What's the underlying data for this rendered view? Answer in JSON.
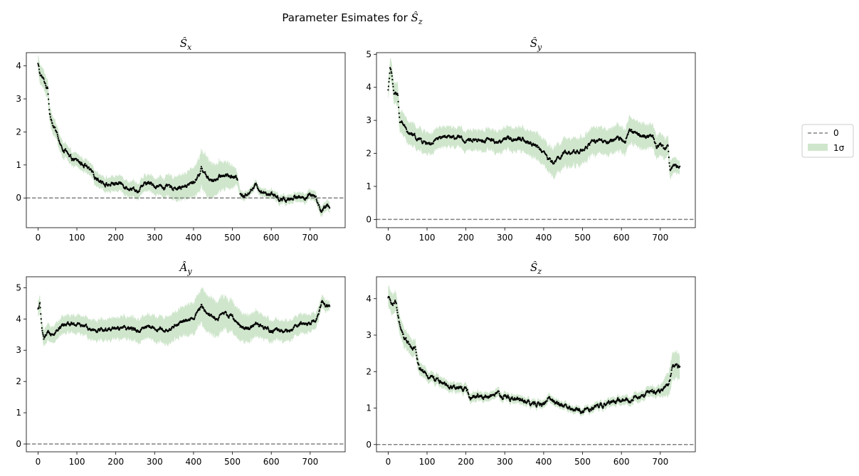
{
  "figure": {
    "title": "Parameter Esimates for Ŝz",
    "title_main": "Parameter Esimates for ",
    "title_symbol": "Ŝ",
    "title_sub": "z"
  },
  "legend": {
    "entries": [
      {
        "label": "0",
        "style": "dashed-line",
        "color": "#808080"
      },
      {
        "label": "1σ",
        "style": "patch",
        "color": "#cfe6cc"
      }
    ],
    "placement": "right-center"
  },
  "colors": {
    "points": "#000000",
    "band": "#cfe6cc",
    "zero_line": "#808080"
  },
  "chart_data": [
    {
      "type": "scatter",
      "title": "Ŝx",
      "title_symbol": "Ŝ",
      "title_sub": "x",
      "xlim": [
        -30,
        790
      ],
      "ylim": [
        -0.9,
        4.4
      ],
      "xticks": [
        0,
        100,
        200,
        300,
        400,
        500,
        600,
        700
      ],
      "yticks": [
        0,
        1,
        2,
        3,
        4
      ],
      "x_end": 750,
      "zero_line": 0,
      "gaps": [
        [
          513,
          520
        ]
      ],
      "mean_keypoints": [
        [
          0,
          4.05
        ],
        [
          5,
          3.75
        ],
        [
          15,
          3.55
        ],
        [
          25,
          3.3
        ],
        [
          30,
          2.6
        ],
        [
          40,
          2.2
        ],
        [
          50,
          1.9
        ],
        [
          60,
          1.5
        ],
        [
          70,
          1.45
        ],
        [
          80,
          1.2
        ],
        [
          100,
          1.1
        ],
        [
          120,
          1.0
        ],
        [
          140,
          0.7
        ],
        [
          160,
          0.55
        ],
        [
          180,
          0.4
        ],
        [
          200,
          0.45
        ],
        [
          220,
          0.4
        ],
        [
          240,
          0.32
        ],
        [
          260,
          0.22
        ],
        [
          280,
          0.45
        ],
        [
          300,
          0.38
        ],
        [
          320,
          0.35
        ],
        [
          340,
          0.3
        ],
        [
          360,
          0.35
        ],
        [
          380,
          0.35
        ],
        [
          400,
          0.45
        ],
        [
          415,
          0.75
        ],
        [
          420,
          0.88
        ],
        [
          440,
          0.6
        ],
        [
          460,
          0.55
        ],
        [
          480,
          0.7
        ],
        [
          500,
          0.65
        ],
        [
          513,
          0.55
        ],
        [
          520,
          0.2
        ],
        [
          530,
          0.05
        ],
        [
          545,
          0.25
        ],
        [
          560,
          0.35
        ],
        [
          580,
          0.2
        ],
        [
          600,
          0.15
        ],
        [
          620,
          0.0
        ],
        [
          640,
          -0.05
        ],
        [
          660,
          0.05
        ],
        [
          680,
          0.0
        ],
        [
          700,
          0.1
        ],
        [
          710,
          0.15
        ],
        [
          720,
          -0.15
        ],
        [
          730,
          -0.4
        ],
        [
          740,
          -0.3
        ],
        [
          750,
          -0.25
        ]
      ],
      "band_halfwidth_keypoints": [
        [
          0,
          0.3
        ],
        [
          100,
          0.2
        ],
        [
          300,
          0.25
        ],
        [
          400,
          0.45
        ],
        [
          430,
          0.6
        ],
        [
          500,
          0.35
        ],
        [
          520,
          0.12
        ],
        [
          700,
          0.15
        ],
        [
          750,
          0.15
        ]
      ]
    },
    {
      "type": "scatter",
      "title": "Ŝy",
      "title_symbol": "Ŝ",
      "title_sub": "y",
      "xlim": [
        -30,
        790
      ],
      "ylim": [
        -0.25,
        5.05
      ],
      "xticks": [
        0,
        100,
        200,
        300,
        400,
        500,
        600,
        700
      ],
      "yticks": [
        0,
        1,
        2,
        3,
        4,
        5
      ],
      "x_end": 750,
      "zero_line": 0,
      "gaps": [],
      "mean_keypoints": [
        [
          0,
          3.9
        ],
        [
          5,
          4.6
        ],
        [
          10,
          4.3
        ],
        [
          15,
          3.8
        ],
        [
          25,
          3.75
        ],
        [
          30,
          3.0
        ],
        [
          40,
          2.9
        ],
        [
          50,
          2.6
        ],
        [
          70,
          2.5
        ],
        [
          90,
          2.35
        ],
        [
          110,
          2.3
        ],
        [
          130,
          2.4
        ],
        [
          150,
          2.5
        ],
        [
          170,
          2.45
        ],
        [
          190,
          2.45
        ],
        [
          200,
          2.3
        ],
        [
          220,
          2.45
        ],
        [
          240,
          2.4
        ],
        [
          260,
          2.45
        ],
        [
          280,
          2.35
        ],
        [
          300,
          2.4
        ],
        [
          320,
          2.45
        ],
        [
          340,
          2.5
        ],
        [
          360,
          2.35
        ],
        [
          380,
          2.25
        ],
        [
          400,
          2.05
        ],
        [
          420,
          1.7
        ],
        [
          430,
          1.75
        ],
        [
          450,
          2.0
        ],
        [
          470,
          1.95
        ],
        [
          490,
          2.05
        ],
        [
          510,
          2.2
        ],
        [
          530,
          2.4
        ],
        [
          550,
          2.35
        ],
        [
          570,
          2.3
        ],
        [
          590,
          2.4
        ],
        [
          610,
          2.45
        ],
        [
          620,
          2.7
        ],
        [
          640,
          2.55
        ],
        [
          660,
          2.5
        ],
        [
          680,
          2.5
        ],
        [
          690,
          2.2
        ],
        [
          700,
          2.3
        ],
        [
          710,
          2.1
        ],
        [
          720,
          2.2
        ],
        [
          725,
          1.5
        ],
        [
          735,
          1.6
        ],
        [
          750,
          1.6
        ]
      ],
      "band_halfwidth_keypoints": [
        [
          0,
          0.3
        ],
        [
          50,
          0.35
        ],
        [
          200,
          0.3
        ],
        [
          300,
          0.35
        ],
        [
          400,
          0.4
        ],
        [
          430,
          0.45
        ],
        [
          550,
          0.4
        ],
        [
          620,
          0.4
        ],
        [
          700,
          0.35
        ],
        [
          750,
          0.2
        ]
      ]
    },
    {
      "type": "scatter",
      "title": "Ây",
      "title_symbol": "Â",
      "title_sub": "y",
      "xlim": [
        -30,
        790
      ],
      "ylim": [
        -0.25,
        5.35
      ],
      "xticks": [
        0,
        100,
        200,
        300,
        400,
        500,
        600,
        700
      ],
      "yticks": [
        0,
        1,
        2,
        3,
        4,
        5
      ],
      "x_end": 750,
      "zero_line": 0,
      "gaps": [],
      "mean_keypoints": [
        [
          0,
          4.3
        ],
        [
          5,
          4.45
        ],
        [
          10,
          3.7
        ],
        [
          15,
          3.3
        ],
        [
          25,
          3.5
        ],
        [
          40,
          3.6
        ],
        [
          60,
          3.8
        ],
        [
          80,
          3.85
        ],
        [
          100,
          3.8
        ],
        [
          120,
          3.75
        ],
        [
          140,
          3.7
        ],
        [
          160,
          3.65
        ],
        [
          180,
          3.65
        ],
        [
          200,
          3.75
        ],
        [
          220,
          3.65
        ],
        [
          240,
          3.7
        ],
        [
          260,
          3.65
        ],
        [
          280,
          3.8
        ],
        [
          300,
          3.7
        ],
        [
          320,
          3.65
        ],
        [
          340,
          3.7
        ],
        [
          360,
          3.85
        ],
        [
          380,
          3.9
        ],
        [
          400,
          4.0
        ],
        [
          420,
          4.4
        ],
        [
          440,
          4.2
        ],
        [
          460,
          4.0
        ],
        [
          480,
          4.2
        ],
        [
          500,
          4.1
        ],
        [
          520,
          3.8
        ],
        [
          540,
          3.7
        ],
        [
          560,
          3.8
        ],
        [
          580,
          3.7
        ],
        [
          600,
          3.65
        ],
        [
          620,
          3.55
        ],
        [
          640,
          3.6
        ],
        [
          660,
          3.7
        ],
        [
          680,
          3.85
        ],
        [
          700,
          3.8
        ],
        [
          720,
          4.1
        ],
        [
          730,
          4.55
        ],
        [
          740,
          4.45
        ],
        [
          750,
          4.4
        ]
      ],
      "band_halfwidth_keypoints": [
        [
          0,
          0.25
        ],
        [
          100,
          0.3
        ],
        [
          200,
          0.35
        ],
        [
          300,
          0.4
        ],
        [
          400,
          0.5
        ],
        [
          430,
          0.6
        ],
        [
          500,
          0.5
        ],
        [
          600,
          0.35
        ],
        [
          700,
          0.3
        ],
        [
          750,
          0.15
        ]
      ]
    },
    {
      "type": "scatter",
      "title": "Ŝz",
      "title_symbol": "Ŝ",
      "title_sub": "z",
      "xlim": [
        -30,
        790
      ],
      "ylim": [
        -0.2,
        4.6
      ],
      "xticks": [
        0,
        100,
        200,
        300,
        400,
        500,
        600,
        700
      ],
      "yticks": [
        0,
        1,
        2,
        3,
        4
      ],
      "x_end": 750,
      "zero_line": 0,
      "gaps": [],
      "mean_keypoints": [
        [
          0,
          4.0
        ],
        [
          10,
          3.85
        ],
        [
          20,
          3.9
        ],
        [
          30,
          3.2
        ],
        [
          40,
          2.9
        ],
        [
          50,
          2.8
        ],
        [
          60,
          2.6
        ],
        [
          70,
          2.6
        ],
        [
          80,
          2.1
        ],
        [
          90,
          2.0
        ],
        [
          100,
          1.8
        ],
        [
          110,
          1.9
        ],
        [
          120,
          1.8
        ],
        [
          140,
          1.7
        ],
        [
          160,
          1.5
        ],
        [
          180,
          1.55
        ],
        [
          200,
          1.5
        ],
        [
          210,
          1.3
        ],
        [
          230,
          1.35
        ],
        [
          250,
          1.3
        ],
        [
          270,
          1.35
        ],
        [
          290,
          1.35
        ],
        [
          300,
          1.3
        ],
        [
          320,
          1.25
        ],
        [
          340,
          1.2
        ],
        [
          360,
          1.15
        ],
        [
          380,
          1.1
        ],
        [
          400,
          1.1
        ],
        [
          410,
          1.25
        ],
        [
          420,
          1.2
        ],
        [
          440,
          1.1
        ],
        [
          460,
          1.0
        ],
        [
          480,
          0.95
        ],
        [
          500,
          0.9
        ],
        [
          520,
          1.0
        ],
        [
          540,
          1.05
        ],
        [
          560,
          1.1
        ],
        [
          580,
          1.15
        ],
        [
          600,
          1.2
        ],
        [
          620,
          1.2
        ],
        [
          640,
          1.35
        ],
        [
          660,
          1.3
        ],
        [
          680,
          1.45
        ],
        [
          700,
          1.5
        ],
        [
          720,
          1.6
        ],
        [
          730,
          2.1
        ],
        [
          740,
          2.2
        ],
        [
          750,
          2.1
        ]
      ],
      "band_halfwidth_keypoints": [
        [
          0,
          0.3
        ],
        [
          50,
          0.25
        ],
        [
          100,
          0.15
        ],
        [
          300,
          0.12
        ],
        [
          500,
          0.1
        ],
        [
          700,
          0.15
        ],
        [
          730,
          0.4
        ],
        [
          750,
          0.35
        ]
      ]
    }
  ]
}
